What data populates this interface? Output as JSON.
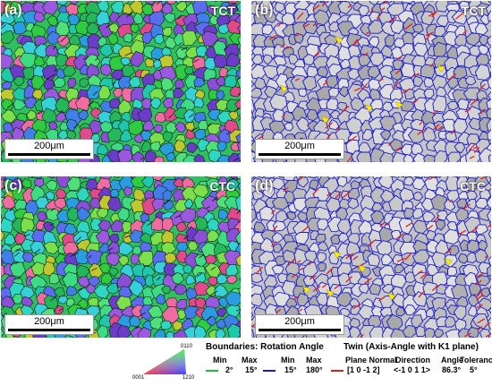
{
  "panels": [
    {
      "label": "(a)",
      "condition": "TCT",
      "scale": "200μm",
      "type": "ipf"
    },
    {
      "label": "(b)",
      "condition": "TCT",
      "scale": "200μm",
      "type": "boundary"
    },
    {
      "label": "(c)",
      "condition": "CTC",
      "scale": "200μm",
      "type": "ipf"
    },
    {
      "label": "(d)",
      "condition": "CTC",
      "scale": "200μm",
      "type": "boundary"
    }
  ],
  "ipf_key": {
    "top": "0110",
    "left": "0001",
    "right": "1210"
  },
  "boundaries": {
    "title": "Boundaries: Rotation Angle",
    "min_label": "Min",
    "max_label": "Max",
    "low": {
      "min": "2°",
      "max": "15°",
      "color": "#22bb44"
    },
    "high": {
      "min": "15°",
      "max": "180°",
      "color": "#1a1acc"
    }
  },
  "twin": {
    "title": "Twin (Axis-Angle with K1 plane)",
    "headers": [
      "Plane Normal",
      "Direction",
      "Angle",
      "Tolerance"
    ],
    "values": [
      "[1 0 -1 2]",
      "<-1 0 1 1>",
      "86.3°",
      "5°"
    ],
    "color": "#dd2222"
  }
}
